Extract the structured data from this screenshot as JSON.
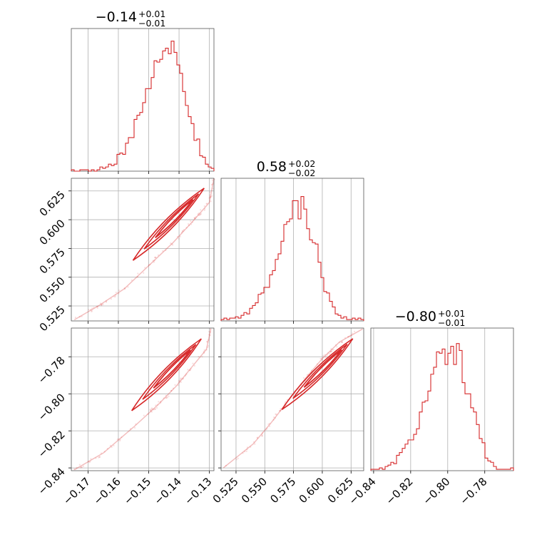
{
  "chart_data": {
    "type": "corner",
    "color": "#d62728",
    "grid": true,
    "parameters": [
      {
        "title_main": "−0.14",
        "title_plus": "+0.01",
        "title_minus": "−0.01",
        "range": [
          -0.1755,
          -0.1285
        ],
        "ticks": [
          -0.17,
          -0.16,
          -0.15,
          -0.14,
          -0.13
        ],
        "tick_labels": [
          "−0.17",
          "−0.16",
          "−0.15",
          "−0.14",
          "−0.13"
        ],
        "hist_heights": [
          0.01,
          0.0,
          0.0,
          0.01,
          0.01,
          0.01,
          0.0,
          0.01,
          0.0,
          0.01,
          0.03,
          0.02,
          0.03,
          0.05,
          0.04,
          0.05,
          0.12,
          0.13,
          0.12,
          0.2,
          0.24,
          0.24,
          0.37,
          0.4,
          0.42,
          0.49,
          0.59,
          0.59,
          0.67,
          0.79,
          0.78,
          0.8,
          0.86,
          0.88,
          0.84,
          0.93,
          0.85,
          0.76,
          0.7,
          0.57,
          0.47,
          0.39,
          0.34,
          0.22,
          0.23,
          0.11,
          0.1,
          0.05,
          0.03,
          0.02
        ]
      },
      {
        "title_main": "0.58",
        "title_plus": "+0.02",
        "title_minus": "−0.02",
        "range": [
          0.512,
          0.636
        ],
        "ticks": [
          0.525,
          0.55,
          0.575,
          0.6,
          0.625
        ],
        "tick_labels": [
          "0.525",
          "0.550",
          "0.575",
          "0.600",
          "0.625"
        ],
        "hist_heights": [
          0.01,
          0.02,
          0.01,
          0.02,
          0.02,
          0.03,
          0.02,
          0.04,
          0.06,
          0.05,
          0.09,
          0.11,
          0.13,
          0.19,
          0.2,
          0.24,
          0.24,
          0.33,
          0.36,
          0.44,
          0.48,
          0.57,
          0.69,
          0.71,
          0.73,
          0.86,
          0.86,
          0.73,
          0.89,
          0.8,
          0.66,
          0.58,
          0.56,
          0.55,
          0.42,
          0.31,
          0.21,
          0.2,
          0.14,
          0.1,
          0.05,
          0.04,
          0.02,
          0.03,
          0.01,
          0.01,
          0.02,
          0.01,
          0.02,
          0.01
        ]
      },
      {
        "title_main": "−0.80",
        "title_plus": "+0.01",
        "title_minus": "−0.01",
        "range": [
          -0.8415,
          -0.7645
        ],
        "ticks": [
          -0.84,
          -0.82,
          -0.8,
          -0.78
        ],
        "tick_labels": [
          "−0.84",
          "−0.82",
          "−0.80",
          "−0.78"
        ],
        "hist_heights": [
          0.01,
          0.01,
          0.01,
          0.02,
          0.01,
          0.03,
          0.04,
          0.06,
          0.05,
          0.11,
          0.13,
          0.16,
          0.19,
          0.22,
          0.22,
          0.26,
          0.3,
          0.42,
          0.49,
          0.5,
          0.57,
          0.69,
          0.74,
          0.85,
          0.84,
          0.87,
          0.76,
          0.84,
          0.89,
          0.76,
          0.91,
          0.86,
          0.63,
          0.55,
          0.55,
          0.45,
          0.42,
          0.33,
          0.23,
          0.2,
          0.09,
          0.07,
          0.06,
          0.03,
          0.01,
          0.01,
          0.01,
          0.01,
          0.01,
          0.02
        ]
      }
    ],
    "contours": [
      {
        "x_param": 0,
        "y_param": 1,
        "points": [
          [
            -0.1745,
            0.513
          ],
          [
            -0.166,
            0.526
          ],
          [
            -0.158,
            0.54
          ],
          [
            -0.15,
            0.56
          ],
          [
            -0.142,
            0.58
          ],
          [
            -0.135,
            0.6
          ],
          [
            -0.13,
            0.615
          ],
          [
            -0.1285,
            0.636
          ]
        ]
      },
      {
        "x_param": 0,
        "y_param": 2,
        "points": [
          [
            -0.1745,
            -0.841
          ],
          [
            -0.165,
            -0.832
          ],
          [
            -0.155,
            -0.818
          ],
          [
            -0.147,
            -0.806
          ],
          [
            -0.141,
            -0.796
          ],
          [
            -0.136,
            -0.786
          ],
          [
            -0.131,
            -0.776
          ],
          [
            -0.1295,
            -0.765
          ]
        ]
      },
      {
        "x_param": 1,
        "y_param": 2,
        "points": [
          [
            0.514,
            -0.84
          ],
          [
            0.54,
            -0.827
          ],
          [
            0.555,
            -0.816
          ],
          [
            0.57,
            -0.804
          ],
          [
            0.585,
            -0.792
          ],
          [
            0.6,
            -0.781
          ],
          [
            0.615,
            -0.772
          ],
          [
            0.635,
            -0.765
          ]
        ]
      }
    ]
  }
}
